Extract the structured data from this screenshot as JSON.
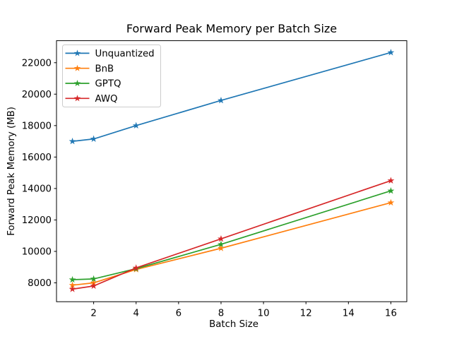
{
  "figure": {
    "background": "#ffffff",
    "spine_color": "#000000"
  },
  "chart_data": {
    "type": "line",
    "title": "Forward Peak Memory per Batch Size",
    "xlabel": "Batch Size",
    "ylabel": "Forward Peak Memory (MB)",
    "x": [
      1,
      2,
      4,
      8,
      16
    ],
    "series": [
      {
        "name": "Unquantized",
        "color": "#1f77b4",
        "marker": "star",
        "values": [
          17000,
          17150,
          18000,
          19600,
          22650
        ]
      },
      {
        "name": "BnB",
        "color": "#ff7f0e",
        "marker": "star",
        "values": [
          7850,
          8000,
          8850,
          10200,
          13100
        ]
      },
      {
        "name": "GPTQ",
        "color": "#2ca02c",
        "marker": "star",
        "values": [
          8200,
          8250,
          8900,
          10450,
          13850
        ]
      },
      {
        "name": "AWQ",
        "color": "#d62728",
        "marker": "star",
        "values": [
          7600,
          7800,
          8950,
          10800,
          14500
        ]
      }
    ],
    "xlim": [
      0.25,
      16.75
    ],
    "ylim": [
      6800,
      23400
    ],
    "xticks": [
      2,
      4,
      6,
      8,
      10,
      12,
      14,
      16
    ],
    "yticks": [
      8000,
      10000,
      12000,
      14000,
      16000,
      18000,
      20000,
      22000
    ],
    "grid": false,
    "legend": {
      "position": "upper-left",
      "border_color": "#cccccc",
      "background": "#ffffff",
      "entries": [
        "Unquantized",
        "BnB",
        "GPTQ",
        "AWQ"
      ]
    }
  }
}
